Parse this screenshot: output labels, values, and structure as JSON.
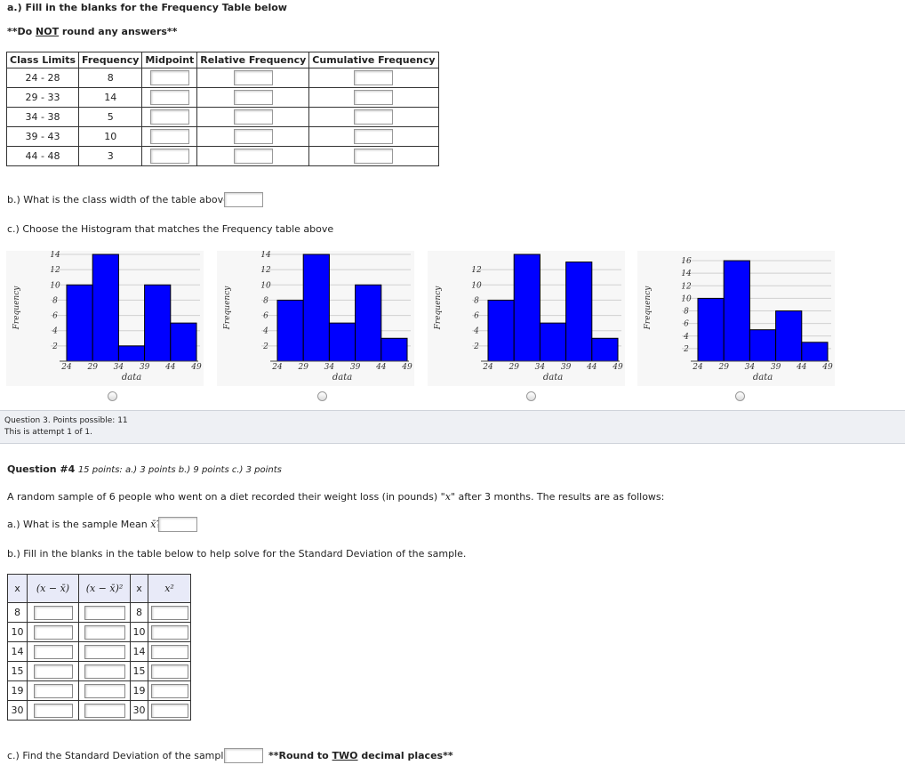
{
  "part_a": {
    "title": "a.) Fill in the blanks for the Frequency Table below",
    "note_prefix": "**Do ",
    "note_not": "NOT",
    "note_suffix": " round any answers**",
    "headers": [
      "Class Limits",
      "Frequency",
      "Midpoint",
      "Relative Frequency",
      "Cumulative Frequency"
    ],
    "rows": [
      {
        "limits": "24 - 28",
        "freq": "8"
      },
      {
        "limits": "29 - 33",
        "freq": "14"
      },
      {
        "limits": "34 - 38",
        "freq": "5"
      },
      {
        "limits": "39 - 43",
        "freq": "10"
      },
      {
        "limits": "44 - 48",
        "freq": "3"
      }
    ]
  },
  "part_b": {
    "question": "b.) What is the class width of the table above?"
  },
  "part_c": {
    "question": "c.) Choose the Histogram that matches the Frequency table above"
  },
  "chart_data": [
    {
      "type": "bar",
      "x_ticks": [
        "24",
        "29",
        "34",
        "39",
        "44",
        "49"
      ],
      "categories": [
        "24-29",
        "29-34",
        "34-39",
        "39-44",
        "44-49"
      ],
      "values": [
        10,
        14,
        2,
        10,
        5
      ],
      "y_ticks": [
        "2",
        "4",
        "6",
        "8",
        "10",
        "12",
        "14"
      ],
      "ylim": [
        0,
        14
      ],
      "xlabel": "data",
      "ylabel": "Frequency",
      "color": "#0000ff"
    },
    {
      "type": "bar",
      "x_ticks": [
        "24",
        "29",
        "34",
        "39",
        "44",
        "49"
      ],
      "categories": [
        "24-29",
        "29-34",
        "34-39",
        "39-44",
        "44-49"
      ],
      "values": [
        8,
        14,
        5,
        10,
        3
      ],
      "y_ticks": [
        "2",
        "4",
        "6",
        "8",
        "10",
        "12",
        "14"
      ],
      "ylim": [
        0,
        14
      ],
      "xlabel": "data",
      "ylabel": "Frequency",
      "color": "#0000ff"
    },
    {
      "type": "bar",
      "x_ticks": [
        "24",
        "29",
        "34",
        "39",
        "44",
        "49"
      ],
      "categories": [
        "24-29",
        "29-34",
        "34-39",
        "39-44",
        "44-49"
      ],
      "values": [
        8,
        14,
        5,
        13,
        3
      ],
      "y_ticks": [
        "2",
        "4",
        "6",
        "8",
        "10",
        "12"
      ],
      "ylim": [
        0,
        14
      ],
      "xlabel": "data",
      "ylabel": "Frequency",
      "color": "#0000ff"
    },
    {
      "type": "bar",
      "x_ticks": [
        "24",
        "29",
        "34",
        "39",
        "44",
        "49"
      ],
      "categories": [
        "24-29",
        "29-34",
        "34-39",
        "39-44",
        "44-49"
      ],
      "values": [
        10,
        16,
        5,
        8,
        3
      ],
      "y_ticks": [
        "2",
        "4",
        "6",
        "8",
        "10",
        "12",
        "14",
        "16"
      ],
      "ylim": [
        0,
        17
      ],
      "xlabel": "data",
      "ylabel": "Frequency",
      "color": "#0000ff"
    }
  ],
  "info": {
    "line1": "Question 3. Points possible: 11",
    "line2": "This is attempt 1 of 1."
  },
  "q4": {
    "title": "Question #4",
    "points": "15 points: a.) 3 points b.) 9 points c.) 3 points",
    "intro_prefix": "A random sample of 6 people who went on a diet recorded their weight loss (in pounds) \"",
    "intro_var": "x",
    "intro_suffix": "\" after 3 months. The results are as follows:",
    "a_prefix": "a.) What is the sample Mean ",
    "a_var": "x̄",
    "a_suffix": "?",
    "b_question": "b.) Fill in the blanks in the table below to help solve for the Standard Deviation of the sample.",
    "table_headers": [
      "x",
      "(x − x̄)",
      "(x − x̄)²",
      "x",
      "x²"
    ],
    "x_values": [
      "8",
      "10",
      "14",
      "15",
      "19",
      "30"
    ],
    "c_question": "c.) Find the Standard Deviation of the sample:",
    "c_note_prefix": "**Round to ",
    "c_note_two": "TWO",
    "c_note_suffix": " decimal places**"
  }
}
